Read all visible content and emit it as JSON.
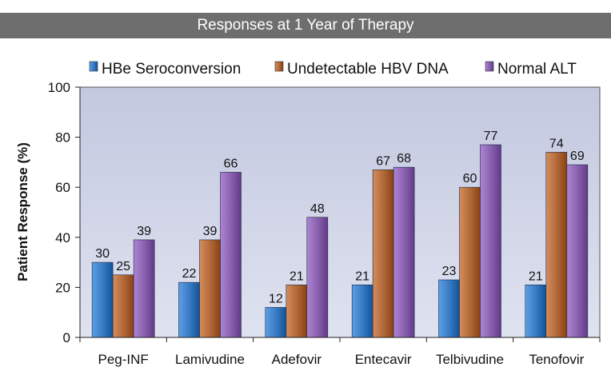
{
  "chart_data": {
    "type": "bar",
    "title": "Responses at 1 Year of Therapy",
    "ylabel": "Patient Response  (%)",
    "xlabel": "",
    "ylim": [
      0,
      100
    ],
    "yticks": [
      0,
      20,
      40,
      60,
      80,
      100
    ],
    "grid": false,
    "legend_position": "top",
    "categories": [
      "Peg-INF",
      "Lamivudine",
      "Adefovir",
      "Entecavir",
      "Telbivudine",
      "Tenofovir"
    ],
    "series": [
      {
        "name": "HBe Seroconversion",
        "color": "#3a7cc4",
        "values": [
          30,
          22,
          12,
          21,
          23,
          21
        ]
      },
      {
        "name": "Undetectable HBV DNA",
        "color": "#b26a3a",
        "values": [
          25,
          39,
          21,
          67,
          60,
          74
        ]
      },
      {
        "name": "Normal ALT",
        "color": "#8a62b0",
        "values": [
          39,
          66,
          48,
          68,
          77,
          69
        ]
      }
    ],
    "plot_background": "#cdd2e6"
  }
}
